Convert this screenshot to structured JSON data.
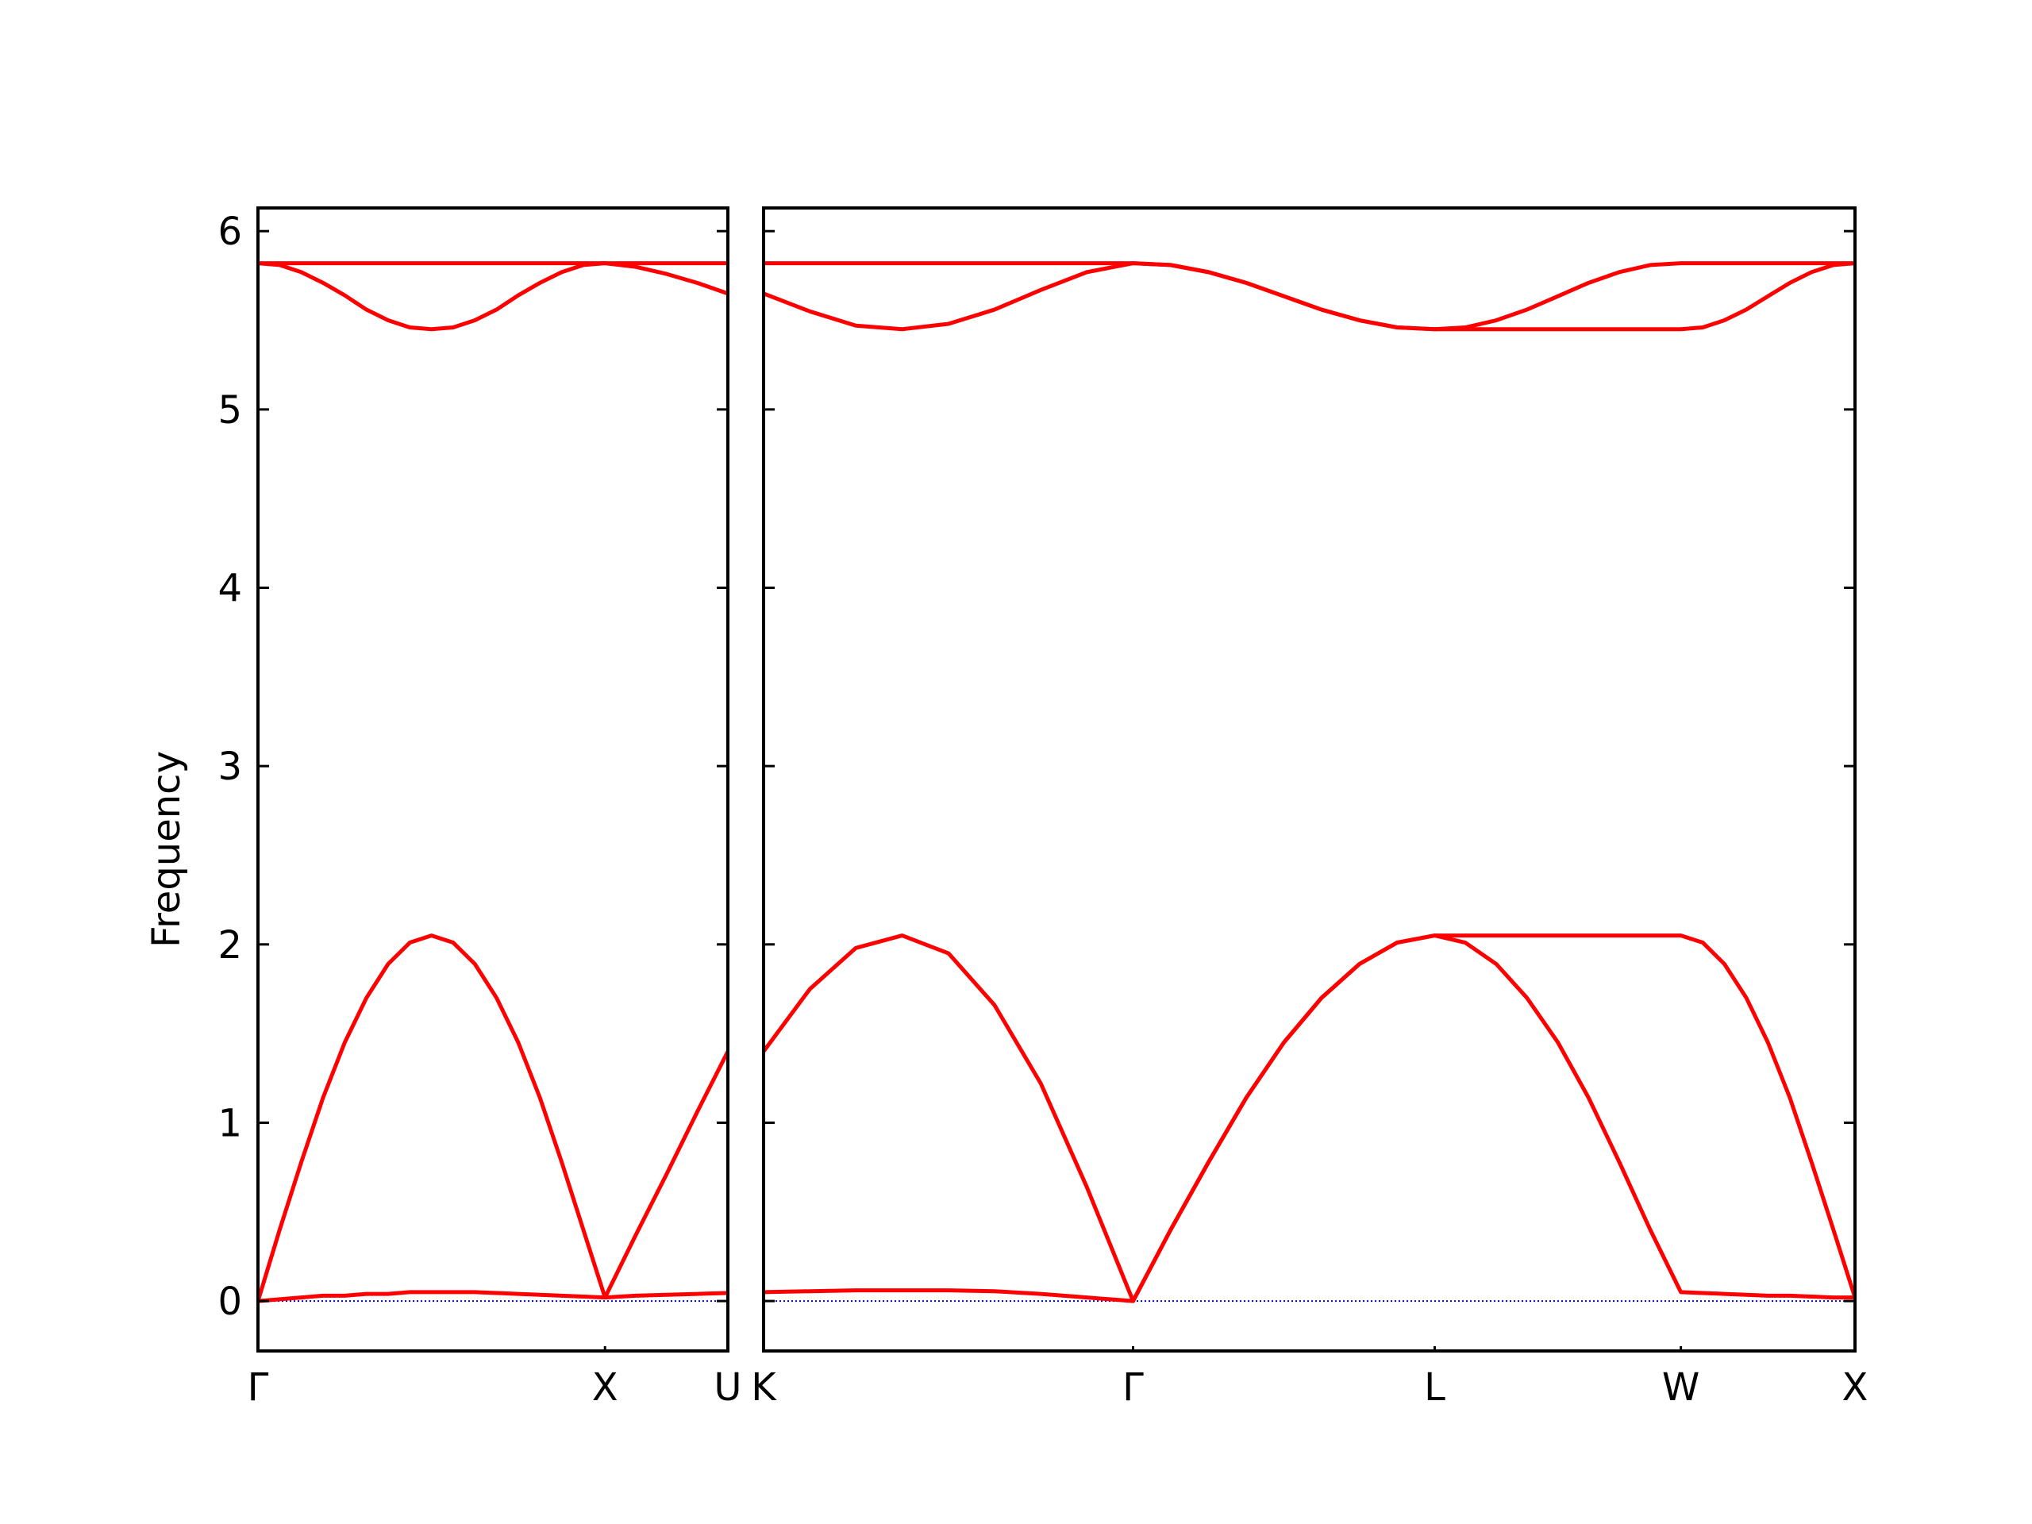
{
  "chart_data": [
    {
      "type": "line",
      "ylabel": "Frequency",
      "x": [
        0,
        0.0625,
        0.125,
        0.1875,
        0.25,
        0.3125,
        0.375,
        0.4375,
        0.5,
        0.5625,
        0.625,
        0.6875,
        0.75,
        0.8125,
        0.875,
        0.9375,
        1,
        1.0885,
        1.177,
        1.2655,
        1.354
      ],
      "xlim": [
        0,
        1.354
      ],
      "xticks": [
        {
          "value": 0,
          "label": "Γ"
        },
        {
          "value": 1,
          "label": "X"
        },
        {
          "value": 1.354,
          "label": "U"
        }
      ],
      "ylim": [
        -0.28,
        6.13
      ],
      "yticks": [
        0,
        1,
        2,
        3,
        4,
        5,
        6
      ],
      "zero_line": 0,
      "zero_line_color": "#0000cc",
      "series": [
        {
          "color": "#ff0000",
          "values": [
            0,
            0.01,
            0.02,
            0.03,
            0.03,
            0.04,
            0.04,
            0.05,
            0.05,
            0.05,
            0.05,
            0.045,
            0.04,
            0.035,
            0.03,
            0.025,
            0.02,
            0.03,
            0.035,
            0.04,
            0.045
          ]
        },
        {
          "color": "#ff0000",
          "values": [
            0,
            0.4,
            0.78,
            1.14,
            1.45,
            1.7,
            1.89,
            2.01,
            2.05,
            2.01,
            1.89,
            1.7,
            1.45,
            1.14,
            0.78,
            0.4,
            0.02,
            0.37,
            0.71,
            1.06,
            1.4
          ]
        },
        {
          "color": "#ff0000",
          "values": [
            5.82,
            5.81,
            5.77,
            5.71,
            5.64,
            5.56,
            5.5,
            5.46,
            5.45,
            5.46,
            5.5,
            5.56,
            5.64,
            5.71,
            5.77,
            5.81,
            5.82,
            5.8,
            5.76,
            5.71,
            5.65
          ]
        },
        {
          "color": "#ff0000",
          "values": [
            5.82,
            5.82,
            5.82,
            5.82,
            5.82,
            5.82,
            5.82,
            5.82,
            5.82,
            5.82,
            5.82,
            5.82,
            5.82,
            5.82,
            5.82,
            5.82,
            5.82,
            5.82,
            5.82,
            5.82,
            5.82
          ]
        }
      ]
    },
    {
      "type": "line",
      "x": [
        0,
        0.133,
        0.265,
        0.398,
        0.531,
        0.663,
        0.796,
        0.928,
        1.061,
        1.169,
        1.278,
        1.386,
        1.494,
        1.602,
        1.711,
        1.819,
        1.927,
        2.015,
        2.104,
        2.192,
        2.281,
        2.369,
        2.457,
        2.546,
        2.634,
        2.697,
        2.759,
        2.822,
        2.884,
        2.947,
        3.009,
        3.072,
        3.134
      ],
      "xlim": [
        0,
        3.134
      ],
      "xticks": [
        {
          "value": 0,
          "label": "K"
        },
        {
          "value": 1.061,
          "label": "Γ"
        },
        {
          "value": 1.927,
          "label": "L"
        },
        {
          "value": 2.634,
          "label": "W"
        },
        {
          "value": 3.134,
          "label": "X"
        }
      ],
      "ylim": [
        -0.28,
        6.13
      ],
      "yticks": [
        0,
        1,
        2,
        3,
        4,
        5,
        6
      ],
      "zero_line": 0,
      "zero_line_color": "#0000cc",
      "series": [
        {
          "color": "#ff0000",
          "values": [
            0.05,
            0.055,
            0.06,
            0.06,
            0.06,
            0.055,
            0.04,
            0.02,
            0,
            0.4,
            0.78,
            1.14,
            1.45,
            1.7,
            1.89,
            2.01,
            2.05,
            2.01,
            1.89,
            1.7,
            1.45,
            1.14,
            0.78,
            0.4,
            0.05,
            0.045,
            0.04,
            0.035,
            0.03,
            0.03,
            0.025,
            0.02,
            0.02
          ]
        },
        {
          "color": "#ff0000",
          "values": [
            1.4,
            1.75,
            1.98,
            2.05,
            1.95,
            1.66,
            1.22,
            0.64,
            0,
            0.4,
            0.78,
            1.14,
            1.45,
            1.7,
            1.89,
            2.01,
            2.05,
            2.05,
            2.05,
            2.05,
            2.05,
            2.05,
            2.05,
            2.05,
            2.05,
            2.01,
            1.89,
            1.7,
            1.45,
            1.14,
            0.78,
            0.4,
            0.02
          ]
        },
        {
          "color": "#ff0000",
          "values": [
            5.65,
            5.55,
            5.47,
            5.45,
            5.48,
            5.56,
            5.67,
            5.77,
            5.82,
            5.81,
            5.77,
            5.71,
            5.635,
            5.56,
            5.5,
            5.46,
            5.45,
            5.45,
            5.45,
            5.45,
            5.45,
            5.45,
            5.45,
            5.45,
            5.45,
            5.46,
            5.5,
            5.56,
            5.635,
            5.71,
            5.77,
            5.81,
            5.82
          ]
        },
        {
          "color": "#ff0000",
          "values": [
            5.82,
            5.82,
            5.82,
            5.82,
            5.82,
            5.82,
            5.82,
            5.82,
            5.82,
            5.81,
            5.77,
            5.71,
            5.635,
            5.56,
            5.5,
            5.46,
            5.45,
            5.46,
            5.5,
            5.56,
            5.635,
            5.71,
            5.77,
            5.81,
            5.82,
            5.82,
            5.82,
            5.82,
            5.82,
            5.82,
            5.82,
            5.82,
            5.82
          ]
        }
      ]
    }
  ]
}
